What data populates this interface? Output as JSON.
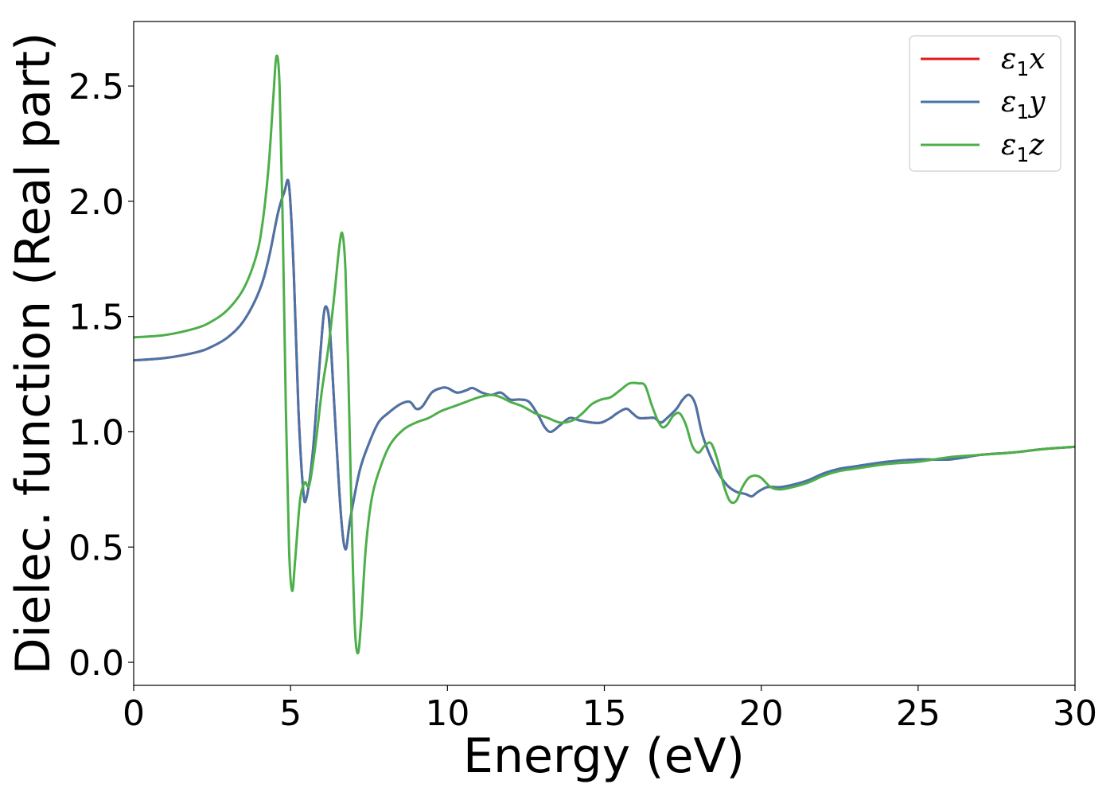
{
  "chart_data": {
    "type": "line",
    "xlabel": "Energy (eV)",
    "ylabel": "Dielec. function (Real part)",
    "xlim": [
      0,
      30
    ],
    "ylim": [
      -0.1,
      2.78
    ],
    "xticks": [
      "0",
      "5",
      "10",
      "15",
      "20",
      "25",
      "30"
    ],
    "yticks": [
      "0.0",
      "0.5",
      "1.0",
      "1.5",
      "2.0",
      "2.5"
    ],
    "grid": false,
    "legend_position": "top-right",
    "series": [
      {
        "name": "ε₁x",
        "legend_main": "ε",
        "legend_sub": "1",
        "legend_var": "x",
        "color": "#e41a1c",
        "x": [
          0,
          1,
          2,
          2.5,
          3,
          3.5,
          4,
          4.3,
          4.6,
          4.8,
          4.95,
          5.1,
          5.25,
          5.4,
          5.5,
          5.7,
          5.9,
          6.05,
          6.15,
          6.25,
          6.4,
          6.6,
          6.75,
          6.9,
          7.2,
          7.5,
          7.8,
          8.1,
          8.5,
          8.8,
          9,
          9.2,
          9.5,
          9.8,
          10,
          10.3,
          10.6,
          10.8,
          11.1,
          11.4,
          11.7,
          12,
          12.3,
          12.6,
          12.9,
          13.1,
          13.3,
          13.6,
          13.9,
          14.2,
          14.6,
          14.9,
          15.2,
          15.4,
          15.7,
          15.9,
          16.1,
          16.4,
          16.6,
          16.8,
          17,
          17.3,
          17.5,
          17.7,
          17.9,
          18.1,
          18.3,
          18.6,
          18.9,
          19.2,
          19.5,
          19.7,
          19.9,
          20.2,
          20.6,
          21,
          21.5,
          22,
          22.5,
          23,
          24,
          25,
          26,
          27,
          28,
          29,
          30
        ],
        "y": [
          1.31,
          1.32,
          1.345,
          1.37,
          1.41,
          1.48,
          1.61,
          1.75,
          1.95,
          2.04,
          2.07,
          1.7,
          1.1,
          0.75,
          0.71,
          0.9,
          1.25,
          1.5,
          1.54,
          1.45,
          1.1,
          0.65,
          0.49,
          0.62,
          0.83,
          0.95,
          1.04,
          1.08,
          1.12,
          1.13,
          1.1,
          1.11,
          1.17,
          1.19,
          1.19,
          1.17,
          1.18,
          1.19,
          1.17,
          1.16,
          1.17,
          1.14,
          1.14,
          1.13,
          1.07,
          1.02,
          1.0,
          1.03,
          1.06,
          1.05,
          1.04,
          1.04,
          1.06,
          1.08,
          1.1,
          1.08,
          1.06,
          1.06,
          1.06,
          1.04,
          1.06,
          1.1,
          1.14,
          1.16,
          1.12,
          1.0,
          0.92,
          0.83,
          0.77,
          0.74,
          0.73,
          0.72,
          0.74,
          0.76,
          0.76,
          0.77,
          0.79,
          0.82,
          0.84,
          0.85,
          0.87,
          0.88,
          0.88,
          0.9,
          0.91,
          0.925,
          0.935
        ]
      },
      {
        "name": "ε₁y",
        "legend_main": "ε",
        "legend_sub": "1",
        "legend_var": "y",
        "color": "#4a74a8",
        "x": [
          0,
          1,
          2,
          2.5,
          3,
          3.5,
          4,
          4.3,
          4.6,
          4.8,
          4.95,
          5.1,
          5.25,
          5.4,
          5.5,
          5.7,
          5.9,
          6.05,
          6.15,
          6.25,
          6.4,
          6.6,
          6.75,
          6.9,
          7.2,
          7.5,
          7.8,
          8.1,
          8.5,
          8.8,
          9,
          9.2,
          9.5,
          9.8,
          10,
          10.3,
          10.6,
          10.8,
          11.1,
          11.4,
          11.7,
          12,
          12.3,
          12.6,
          12.9,
          13.1,
          13.3,
          13.6,
          13.9,
          14.2,
          14.6,
          14.9,
          15.2,
          15.4,
          15.7,
          15.9,
          16.1,
          16.4,
          16.6,
          16.8,
          17,
          17.3,
          17.5,
          17.7,
          17.9,
          18.1,
          18.3,
          18.6,
          18.9,
          19.2,
          19.5,
          19.7,
          19.9,
          20.2,
          20.6,
          21,
          21.5,
          22,
          22.5,
          23,
          24,
          25,
          26,
          27,
          28,
          29,
          30
        ],
        "y": [
          1.31,
          1.32,
          1.345,
          1.37,
          1.41,
          1.48,
          1.61,
          1.75,
          1.95,
          2.04,
          2.07,
          1.7,
          1.1,
          0.75,
          0.71,
          0.9,
          1.25,
          1.5,
          1.54,
          1.45,
          1.1,
          0.65,
          0.49,
          0.62,
          0.83,
          0.95,
          1.04,
          1.08,
          1.12,
          1.13,
          1.1,
          1.11,
          1.17,
          1.19,
          1.19,
          1.17,
          1.18,
          1.19,
          1.17,
          1.16,
          1.17,
          1.14,
          1.14,
          1.13,
          1.07,
          1.02,
          1.0,
          1.03,
          1.06,
          1.05,
          1.04,
          1.04,
          1.06,
          1.08,
          1.1,
          1.08,
          1.06,
          1.06,
          1.06,
          1.04,
          1.06,
          1.1,
          1.14,
          1.16,
          1.12,
          1.0,
          0.92,
          0.83,
          0.77,
          0.74,
          0.73,
          0.72,
          0.74,
          0.76,
          0.76,
          0.77,
          0.79,
          0.82,
          0.84,
          0.85,
          0.87,
          0.88,
          0.88,
          0.9,
          0.91,
          0.925,
          0.935
        ]
      },
      {
        "name": "ε₁z",
        "legend_main": "ε",
        "legend_sub": "1",
        "legend_var": "z",
        "color": "#4daf4a",
        "x": [
          0,
          1,
          2,
          2.5,
          3,
          3.5,
          3.9,
          4.1,
          4.3,
          4.45,
          4.55,
          4.65,
          4.75,
          4.85,
          4.95,
          5.05,
          5.15,
          5.3,
          5.45,
          5.6,
          5.8,
          6.0,
          6.2,
          6.4,
          6.55,
          6.65,
          6.75,
          6.85,
          6.95,
          7.05,
          7.15,
          7.25,
          7.4,
          7.6,
          7.9,
          8.2,
          8.6,
          9,
          9.4,
          9.8,
          10.2,
          10.6,
          11,
          11.4,
          11.7,
          12,
          12.4,
          12.8,
          13.2,
          13.6,
          14,
          14.3,
          14.6,
          14.9,
          15.2,
          15.5,
          15.8,
          16.1,
          16.3,
          16.5,
          16.7,
          16.85,
          17,
          17.2,
          17.4,
          17.6,
          17.8,
          18,
          18.2,
          18.4,
          18.6,
          18.8,
          19,
          19.2,
          19.4,
          19.6,
          19.8,
          20,
          20.3,
          20.6,
          21,
          21.5,
          22,
          22.5,
          23,
          24,
          25,
          26,
          27,
          28,
          29,
          30
        ],
        "y": [
          1.41,
          1.42,
          1.45,
          1.48,
          1.53,
          1.62,
          1.76,
          1.9,
          2.15,
          2.45,
          2.63,
          2.5,
          1.9,
          1.1,
          0.5,
          0.31,
          0.45,
          0.7,
          0.78,
          0.77,
          0.95,
          1.18,
          1.36,
          1.6,
          1.8,
          1.86,
          1.7,
          1.2,
          0.6,
          0.15,
          0.04,
          0.18,
          0.5,
          0.72,
          0.86,
          0.95,
          1.01,
          1.04,
          1.06,
          1.09,
          1.11,
          1.13,
          1.15,
          1.16,
          1.15,
          1.13,
          1.11,
          1.08,
          1.06,
          1.04,
          1.05,
          1.08,
          1.12,
          1.14,
          1.15,
          1.18,
          1.21,
          1.21,
          1.2,
          1.12,
          1.05,
          1.02,
          1.03,
          1.07,
          1.08,
          1.03,
          0.94,
          0.91,
          0.94,
          0.95,
          0.88,
          0.77,
          0.7,
          0.7,
          0.76,
          0.8,
          0.81,
          0.8,
          0.76,
          0.75,
          0.76,
          0.78,
          0.81,
          0.83,
          0.84,
          0.86,
          0.87,
          0.89,
          0.9,
          0.91,
          0.925,
          0.935
        ]
      }
    ]
  }
}
